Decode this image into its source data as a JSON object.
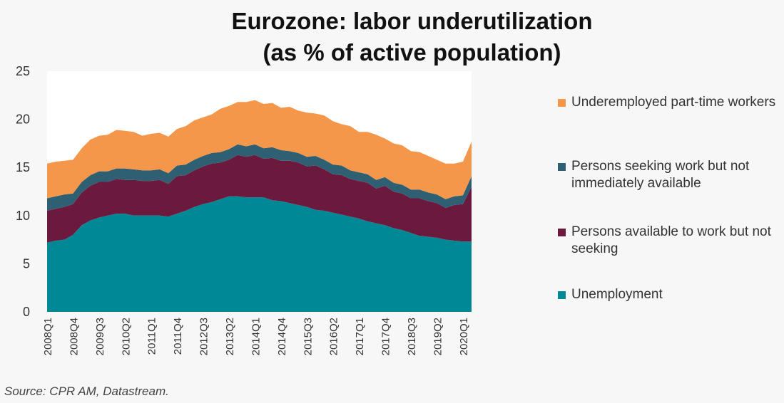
{
  "chart_data": {
    "type": "area",
    "stacked": true,
    "title": [
      "Eurozone: labor underutilization",
      "(as % of active population)"
    ],
    "source": "Source: CPR AM, Datastream.",
    "ylim": [
      0,
      25
    ],
    "yticks": [
      0,
      5,
      10,
      15,
      20,
      25
    ],
    "grid": false,
    "legend_position": "right",
    "x": [
      "2008Q1",
      "2008Q2",
      "2008Q3",
      "2008Q4",
      "2009Q1",
      "2009Q2",
      "2009Q3",
      "2009Q4",
      "2010Q1",
      "2010Q2",
      "2010Q3",
      "2010Q4",
      "2011Q1",
      "2011Q2",
      "2011Q3",
      "2011Q4",
      "2012Q1",
      "2012Q2",
      "2012Q3",
      "2012Q4",
      "2013Q1",
      "2013Q2",
      "2013Q3",
      "2013Q4",
      "2014Q1",
      "2014Q2",
      "2014Q3",
      "2014Q4",
      "2015Q1",
      "2015Q2",
      "2015Q3",
      "2015Q4",
      "2016Q1",
      "2016Q2",
      "2016Q3",
      "2016Q4",
      "2017Q1",
      "2017Q2",
      "2017Q3",
      "2017Q4",
      "2018Q1",
      "2018Q2",
      "2018Q3",
      "2018Q4",
      "2019Q1",
      "2019Q2",
      "2019Q3",
      "2019Q4",
      "2020Q1",
      "2020Q2"
    ],
    "xtick_labels": [
      "2008Q1",
      "2008Q4",
      "2009Q3",
      "2010Q2",
      "2011Q1",
      "2011Q4",
      "2012Q3",
      "2013Q2",
      "2014Q1",
      "2014Q4",
      "2015Q3",
      "2016Q2",
      "2017Q1",
      "2017Q4",
      "2018Q3",
      "2019Q2",
      "2020Q1"
    ],
    "series": [
      {
        "name": "Unemployment",
        "color": "#008896",
        "values": [
          7.2,
          7.4,
          7.5,
          8.0,
          9.0,
          9.5,
          9.8,
          10.0,
          10.2,
          10.2,
          10.0,
          10.0,
          10.0,
          10.0,
          9.9,
          10.2,
          10.5,
          10.9,
          11.2,
          11.4,
          11.7,
          12.0,
          12.0,
          11.9,
          11.9,
          11.9,
          11.6,
          11.5,
          11.3,
          11.1,
          10.9,
          10.6,
          10.5,
          10.3,
          10.1,
          9.9,
          9.7,
          9.4,
          9.2,
          9.0,
          8.7,
          8.5,
          8.2,
          7.9,
          7.8,
          7.7,
          7.5,
          7.4,
          7.3,
          7.3
        ]
      },
      {
        "name": "Persons available to work but not seeking",
        "color": "#6b1a3d",
        "values": [
          3.3,
          3.3,
          3.4,
          3.2,
          3.4,
          3.6,
          3.7,
          3.5,
          3.6,
          3.5,
          3.7,
          3.6,
          3.6,
          3.7,
          3.4,
          3.9,
          3.7,
          3.8,
          3.9,
          4.0,
          3.8,
          3.8,
          4.3,
          4.2,
          4.4,
          4.0,
          4.4,
          4.2,
          4.4,
          4.4,
          4.2,
          4.6,
          4.3,
          4.0,
          4.1,
          3.9,
          3.9,
          4.0,
          3.6,
          4.1,
          3.8,
          3.8,
          3.6,
          3.9,
          3.7,
          3.6,
          3.3,
          3.7,
          3.9,
          5.7
        ]
      },
      {
        "name": "Persons seeking work but not immediately available",
        "color": "#2f5f73",
        "values": [
          1.3,
          1.3,
          1.3,
          1.1,
          1.1,
          1.1,
          1.1,
          1.1,
          1.1,
          1.2,
          1.1,
          1.1,
          1.1,
          1.1,
          1.1,
          1.1,
          1.1,
          1.1,
          1.1,
          1.1,
          1.1,
          1.1,
          1.1,
          1.1,
          1.1,
          1.1,
          1.1,
          1.1,
          1.0,
          1.0,
          1.0,
          1.0,
          1.0,
          1.0,
          1.0,
          0.9,
          0.9,
          0.9,
          0.9,
          0.9,
          0.9,
          0.9,
          0.9,
          0.9,
          0.9,
          0.9,
          0.9,
          0.9,
          0.9,
          1.1
        ]
      },
      {
        "name": "Underemployed part-time workers",
        "color": "#f4974a",
        "values": [
          3.6,
          3.6,
          3.5,
          3.5,
          3.5,
          3.7,
          3.7,
          3.8,
          4.0,
          3.9,
          3.9,
          3.6,
          3.8,
          3.8,
          3.8,
          3.8,
          4.0,
          4.1,
          4.0,
          4.0,
          4.5,
          4.5,
          4.4,
          4.6,
          4.6,
          4.6,
          4.6,
          4.4,
          4.6,
          4.4,
          4.6,
          4.4,
          4.6,
          4.5,
          4.3,
          4.6,
          4.2,
          4.4,
          4.7,
          4.0,
          4.1,
          4.1,
          4.0,
          3.9,
          3.8,
          3.6,
          3.7,
          3.4,
          3.5,
          3.6
        ]
      }
    ]
  },
  "legend": [
    {
      "label": "Underemployed part-time workers",
      "color": "#f4974a"
    },
    {
      "label": "Persons seeking work but not immediately available",
      "color": "#2f5f73"
    },
    {
      "label": "Persons available to work but not seeking",
      "color": "#6b1a3d"
    },
    {
      "label": "Unemployment",
      "color": "#008896"
    }
  ]
}
